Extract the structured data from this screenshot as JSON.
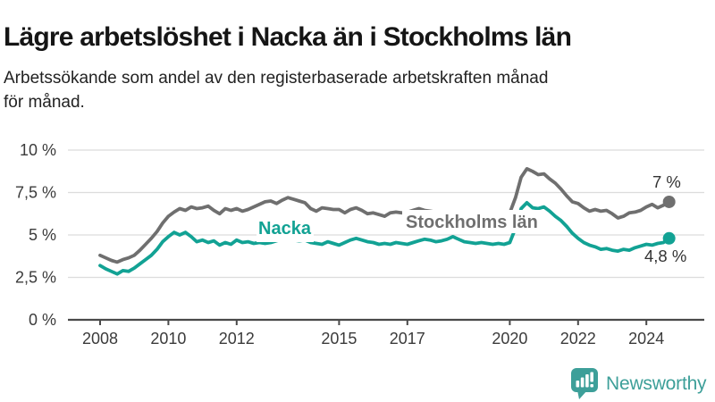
{
  "title": "Lägre arbetslöshet i Nacka än i Stockholms län",
  "subtitle": [
    "Arbetssökande som andel av den registerbaserade arbetskraften månad",
    "för månad."
  ],
  "chart_data": {
    "type": "line",
    "title": "Lägre arbetslöshet i Nacka än i Stockholms län",
    "xlabel": "",
    "ylabel": "Arbetssökande som andel av den registerbaserade arbetskraften",
    "ylim": [
      0,
      10
    ],
    "grid": "horizontal",
    "legend_position": "inline-labels",
    "x_start_year": 2008,
    "points_per_year": 6,
    "x_end_approx": 2024.67,
    "y_ticks": [
      {
        "value": 10,
        "label": "10 %"
      },
      {
        "value": 7.5,
        "label": "7,5 %"
      },
      {
        "value": 5,
        "label": "5 %"
      },
      {
        "value": 2.5,
        "label": "2,5 %"
      },
      {
        "value": 0,
        "label": "0 %"
      }
    ],
    "x_ticks": [
      {
        "value": 2008,
        "label": "2008"
      },
      {
        "value": 2010,
        "label": "2010"
      },
      {
        "value": 2012,
        "label": "2012"
      },
      {
        "value": 2015,
        "label": "2015"
      },
      {
        "value": 2017,
        "label": "2017"
      },
      {
        "value": 2020,
        "label": "2020"
      },
      {
        "value": 2022,
        "label": "2022"
      },
      {
        "value": 2024,
        "label": "2024"
      }
    ],
    "series": [
      {
        "name": "Stockholms län",
        "color": "#6F6F6F",
        "end_label": "7 %",
        "end_value": 7.0,
        "values": [
          3.8,
          3.65,
          3.5,
          3.4,
          3.55,
          3.65,
          3.8,
          4.1,
          4.45,
          4.8,
          5.2,
          5.7,
          6.1,
          6.35,
          6.55,
          6.45,
          6.65,
          6.55,
          6.6,
          6.7,
          6.45,
          6.25,
          6.55,
          6.45,
          6.55,
          6.4,
          6.5,
          6.65,
          6.8,
          6.95,
          7.0,
          6.85,
          7.05,
          7.2,
          7.1,
          7.0,
          6.9,
          6.55,
          6.4,
          6.6,
          6.55,
          6.5,
          6.5,
          6.3,
          6.5,
          6.6,
          6.45,
          6.25,
          6.3,
          6.2,
          6.1,
          6.3,
          6.35,
          6.3,
          6.35,
          6.45,
          6.55,
          6.45,
          6.4,
          6.35,
          6.3,
          6.25,
          6.35,
          6.3,
          6.25,
          6.2,
          6.25,
          6.2,
          6.3,
          6.35,
          6.3,
          6.25,
          6.3,
          7.2,
          8.4,
          8.9,
          8.75,
          8.55,
          8.6,
          8.3,
          8.05,
          7.7,
          7.3,
          6.95,
          6.85,
          6.6,
          6.4,
          6.5,
          6.4,
          6.45,
          6.25,
          6.0,
          6.1,
          6.3,
          6.35,
          6.45,
          6.65,
          6.8,
          6.6,
          6.75,
          6.95
        ]
      },
      {
        "name": "Nacka",
        "color": "#12A294",
        "end_label": "4,8 %",
        "end_value": 4.8,
        "values": [
          3.2,
          3.0,
          2.85,
          2.7,
          2.9,
          2.85,
          3.05,
          3.3,
          3.55,
          3.8,
          4.15,
          4.6,
          4.9,
          5.15,
          5.0,
          5.15,
          4.9,
          4.6,
          4.7,
          4.55,
          4.65,
          4.4,
          4.55,
          4.45,
          4.7,
          4.55,
          4.6,
          4.5,
          4.55,
          4.5,
          4.55,
          4.65,
          4.75,
          4.85,
          4.7,
          4.65,
          4.7,
          4.55,
          4.5,
          4.45,
          4.6,
          4.5,
          4.4,
          4.55,
          4.7,
          4.8,
          4.7,
          4.6,
          4.55,
          4.45,
          4.5,
          4.45,
          4.55,
          4.5,
          4.45,
          4.55,
          4.65,
          4.75,
          4.7,
          4.6,
          4.65,
          4.75,
          4.9,
          4.75,
          4.6,
          4.55,
          4.5,
          4.55,
          4.5,
          4.45,
          4.5,
          4.45,
          4.55,
          5.4,
          6.55,
          6.9,
          6.6,
          6.55,
          6.65,
          6.4,
          6.1,
          5.85,
          5.5,
          5.1,
          4.8,
          4.55,
          4.4,
          4.3,
          4.15,
          4.2,
          4.1,
          4.05,
          4.15,
          4.1,
          4.25,
          4.35,
          4.45,
          4.4,
          4.5,
          4.55,
          4.8
        ]
      }
    ]
  },
  "footer": {
    "brand": "Newsworthy",
    "logo_icon": "bar-chart-speech-bubble",
    "brand_color": "#3D9F99"
  },
  "colors": {
    "accent_teal": "#12A294",
    "line_gray": "#6F6F6F",
    "gridline": "#DCDCDC",
    "axis": "#4A4A4A",
    "text_dark": "#151515"
  }
}
